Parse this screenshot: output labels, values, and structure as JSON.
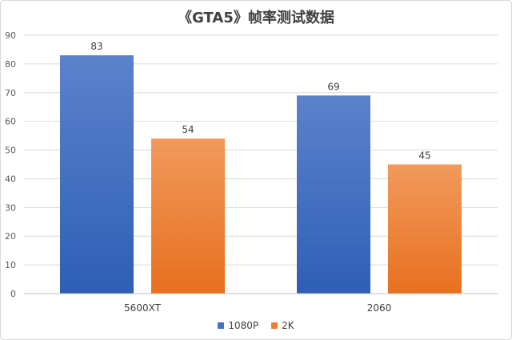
{
  "chart_data": {
    "type": "bar",
    "title": "《GTA5》帧率测试数据",
    "xlabel": "",
    "ylabel": "",
    "categories": [
      "5600XT",
      "2060"
    ],
    "series": [
      {
        "name": "1080P",
        "values": [
          83,
          69
        ],
        "color": "#4472c4"
      },
      {
        "name": "2K",
        "values": [
          54,
          45
        ],
        "color": "#ed7d31"
      }
    ],
    "ylim": [
      0,
      90
    ],
    "yticks": [
      0,
      10,
      20,
      30,
      40,
      50,
      60,
      70,
      80,
      90
    ],
    "grid": true,
    "legend_position": "bottom"
  }
}
